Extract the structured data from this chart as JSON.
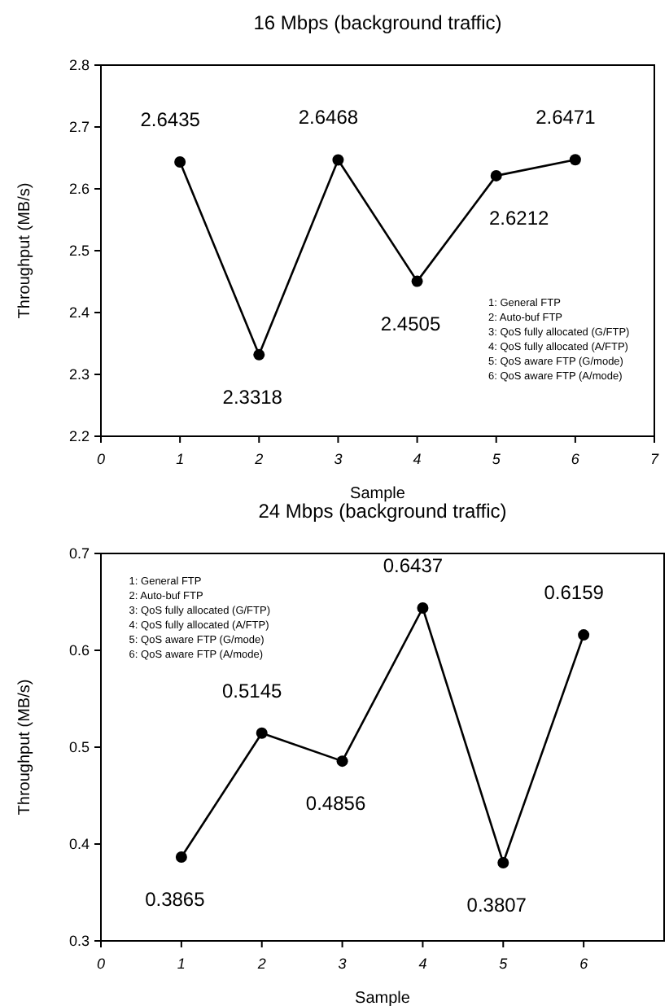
{
  "chart_data": [
    {
      "type": "line",
      "title": "16 Mbps (background traffic)",
      "xlabel": "Sample",
      "ylabel": "Throughput (MB/s)",
      "x": [
        1,
        2,
        3,
        4,
        5,
        6
      ],
      "series": [
        {
          "color": "#000000",
          "values": [
            2.6435,
            2.3318,
            2.6468,
            2.4505,
            2.6212,
            2.6471
          ]
        }
      ],
      "xlim": [
        0,
        7
      ],
      "xticks": [
        0,
        1,
        2,
        3,
        4,
        5,
        6,
        7
      ],
      "ylim": [
        2.2,
        2.8
      ],
      "yticks": [
        2.2,
        2.3,
        2.4,
        2.5,
        2.6,
        2.7,
        2.8
      ],
      "data_labels": true,
      "marker": "circle",
      "line_style": "solid",
      "grid": false,
      "annotations": [
        "1: General FTP",
        "2: Auto-buf FTP",
        "3: QoS fully allocated (G/FTP)",
        "4: QoS fully allocated (A/FTP)",
        "5: QoS aware FTP (G/mode)",
        "6: QoS aware FTP (A/mode)"
      ]
    },
    {
      "type": "line",
      "title": "24 Mbps (background traffic)",
      "xlabel": "Sample",
      "ylabel": "Throughput (MB/s)",
      "x": [
        1,
        2,
        3,
        4,
        5,
        6
      ],
      "series": [
        {
          "color": "#000000",
          "values": [
            0.3865,
            0.5145,
            0.4856,
            0.6437,
            0.3807,
            0.6159
          ]
        }
      ],
      "xlim": [
        0,
        7
      ],
      "xticks": [
        0,
        1,
        2,
        3,
        4,
        5,
        6
      ],
      "ylim": [
        0.3,
        0.7
      ],
      "yticks": [
        0.3,
        0.4,
        0.5,
        0.6,
        0.7
      ],
      "data_labels": true,
      "marker": "circle",
      "line_style": "solid",
      "grid": false,
      "annotations": [
        "1: General FTP",
        "2: Auto-buf FTP",
        "3: QoS fully allocated (G/FTP)",
        "4: QoS fully allocated (A/FTP)",
        "5: QoS aware FTP (G/mode)",
        "6: QoS aware FTP (A/mode)"
      ]
    }
  ]
}
